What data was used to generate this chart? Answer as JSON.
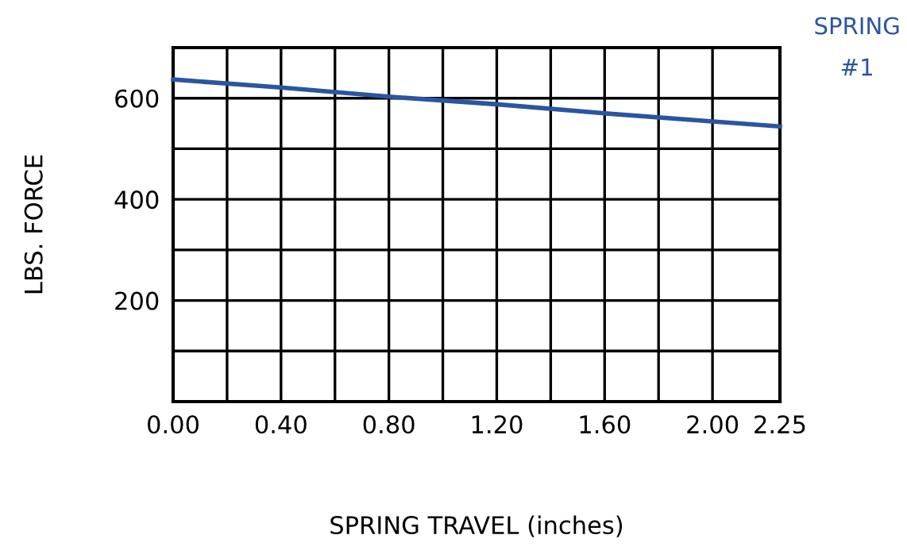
{
  "chart_data": {
    "type": "line",
    "xlabel": "SPRING TRAVEL (inches)",
    "ylabel": "LBS. FORCE",
    "x": [
      0,
      0.4,
      0.8,
      1.2,
      1.6,
      2.0,
      2.25
    ],
    "series": [
      {
        "name": "SPRING #1",
        "color": "#2a55a0",
        "values": [
          637,
          621,
          603,
          588,
          570,
          554,
          544
        ]
      }
    ],
    "xlim": [
      0,
      2.25
    ],
    "xticks": [
      {
        "value": 0,
        "label": "0.00"
      },
      {
        "value": 0.2,
        "label": null
      },
      {
        "value": 0.4,
        "label": "0.40"
      },
      {
        "value": 0.6,
        "label": null
      },
      {
        "value": 0.8,
        "label": "0.80"
      },
      {
        "value": 1.0,
        "label": null
      },
      {
        "value": 1.2,
        "label": "1.20"
      },
      {
        "value": 1.4,
        "label": null
      },
      {
        "value": 1.6,
        "label": "1.60"
      },
      {
        "value": 1.8,
        "label": null
      },
      {
        "value": 2.0,
        "label": "2.00"
      },
      {
        "value": 2.25,
        "label": "2.25"
      }
    ],
    "ylim": [
      0,
      700
    ],
    "yticks": [
      {
        "value": 100,
        "label": null
      },
      200,
      {
        "value": 300,
        "label": null
      },
      400,
      {
        "value": 500,
        "label": null
      },
      600
    ],
    "grid": true,
    "legend": false,
    "marker": "none",
    "line_style": "solid"
  }
}
